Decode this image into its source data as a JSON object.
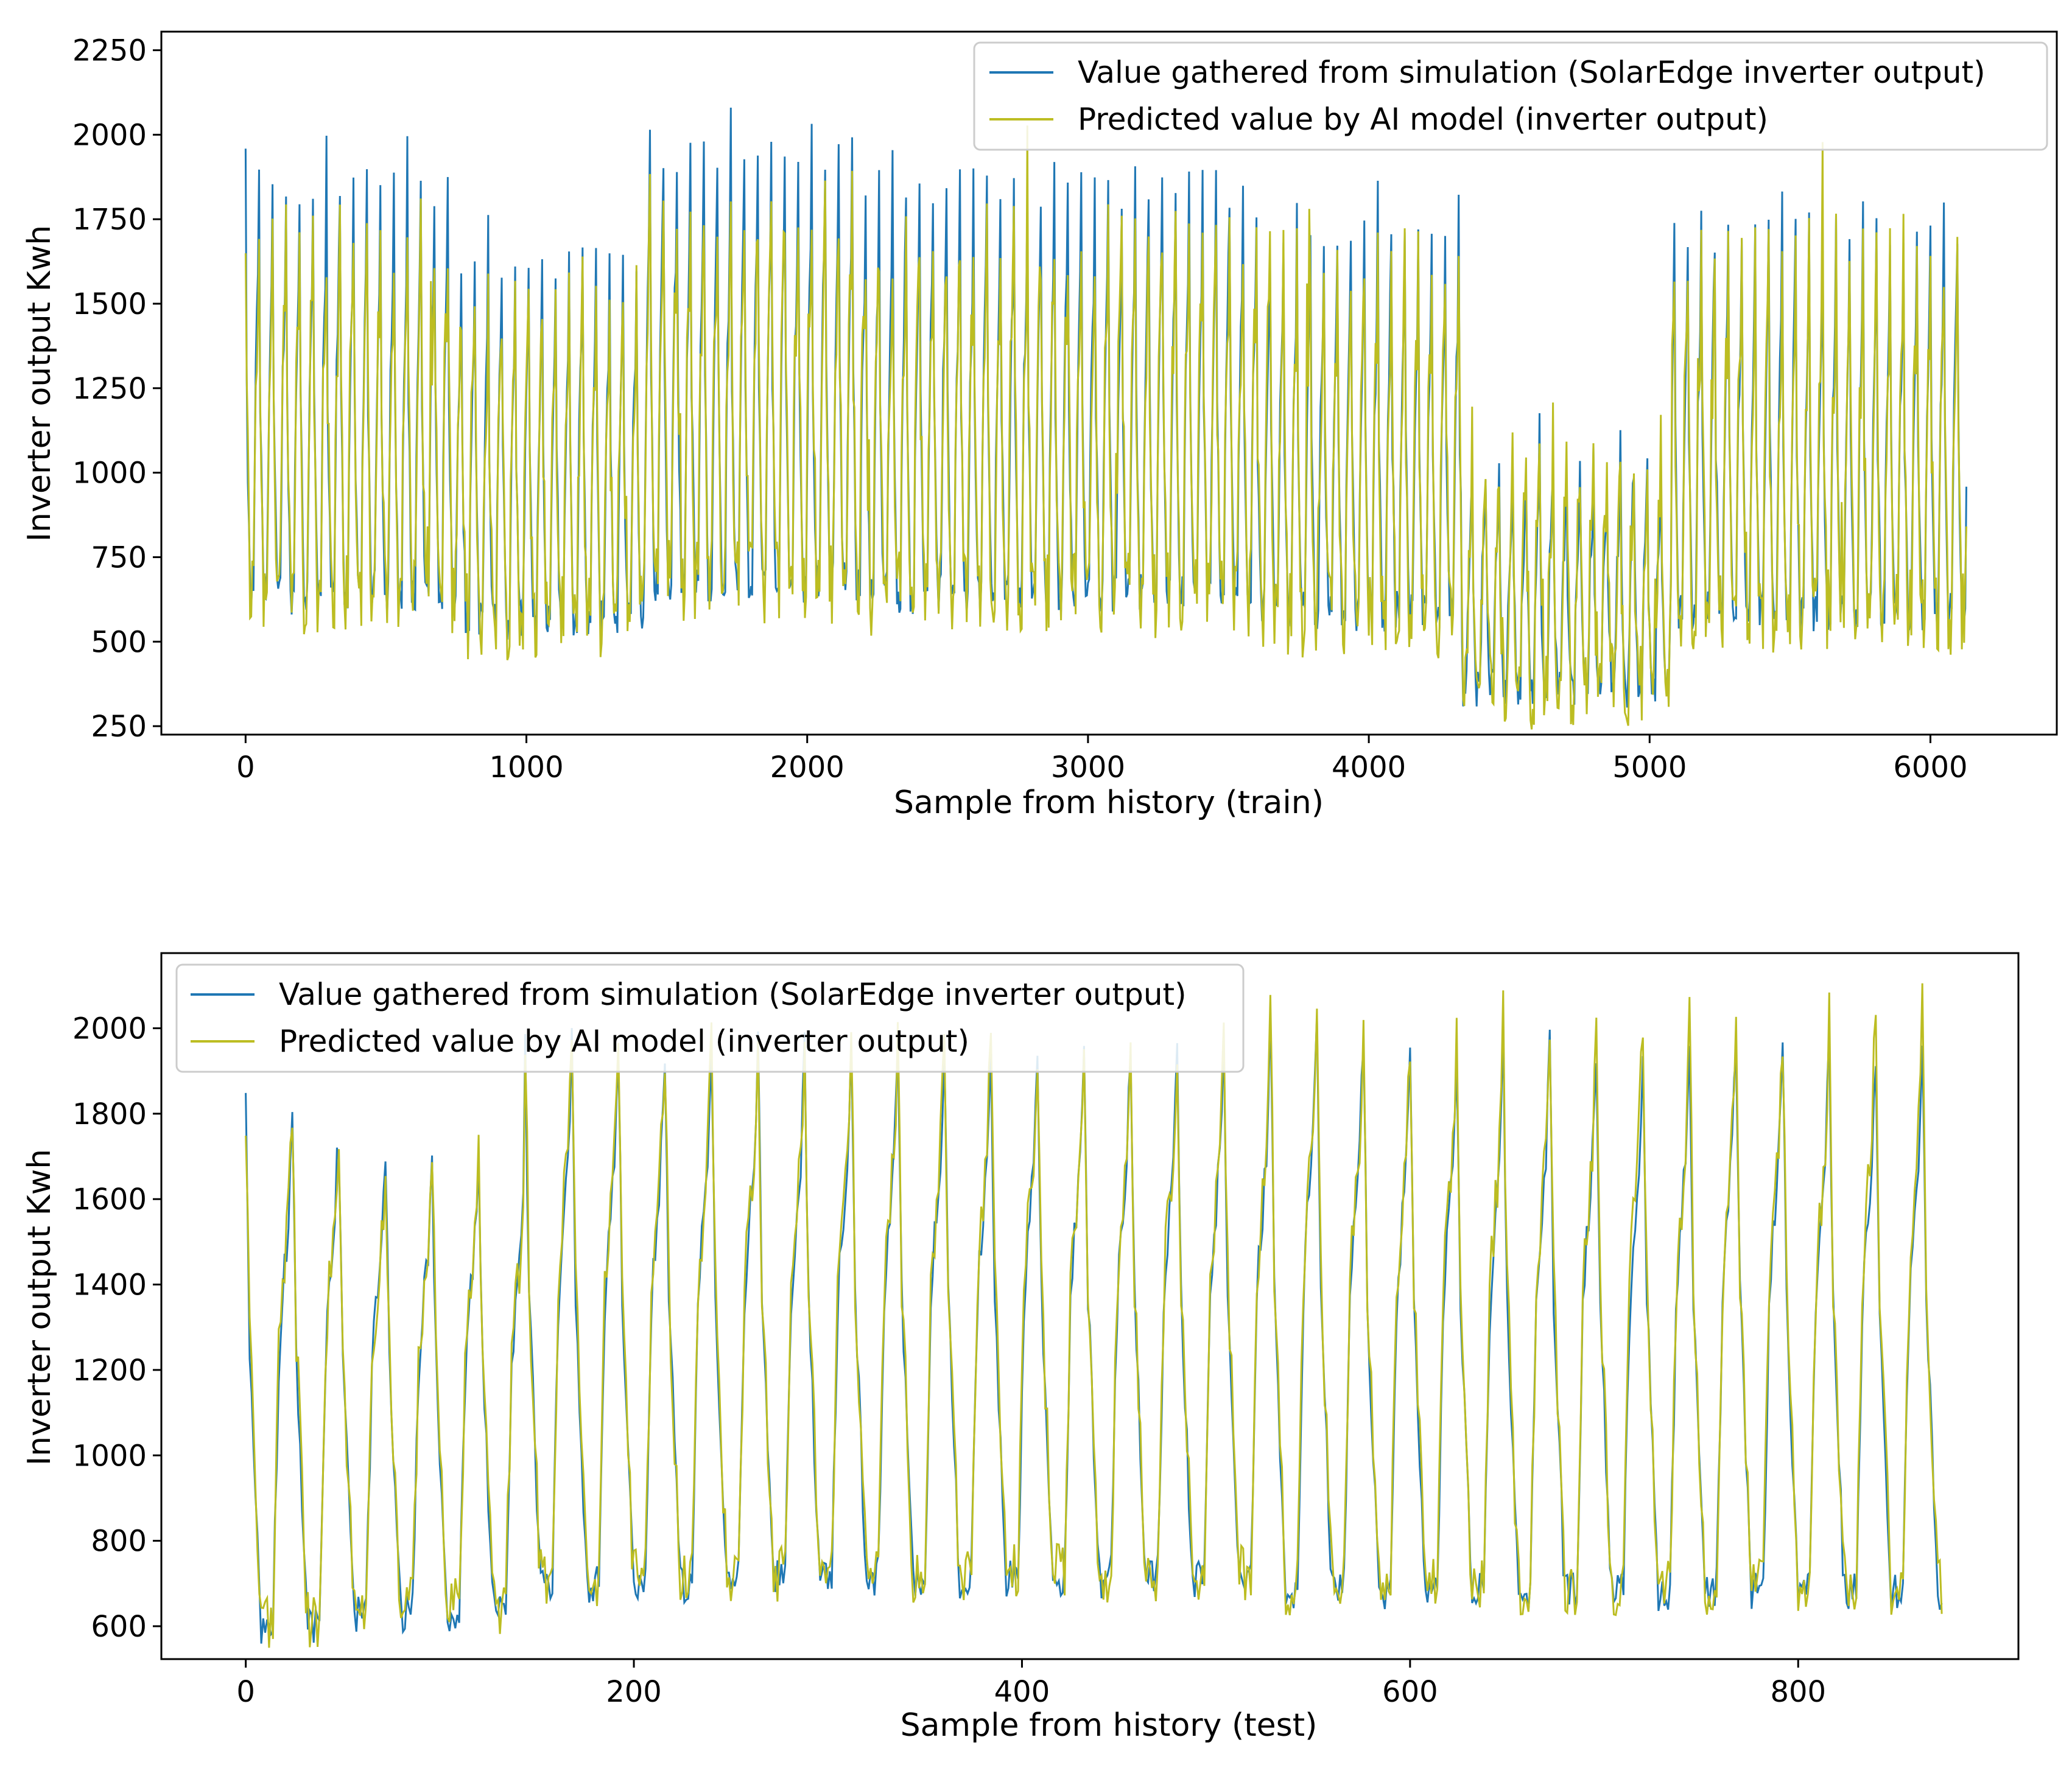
{
  "chart_data": [
    {
      "type": "line",
      "xlabel": "Sample from history (train)",
      "ylabel": "Inverter output Kwh",
      "xlim": [
        -300,
        6450
      ],
      "ylim": [
        225,
        2305
      ],
      "xticks": [
        0,
        1000,
        2000,
        3000,
        4000,
        5000,
        6000
      ],
      "yticks": [
        250,
        500,
        750,
        1000,
        1250,
        1500,
        1750,
        2000,
        2250
      ],
      "xtick_labels": [
        "0",
        "1000",
        "2000",
        "3000",
        "4000",
        "5000",
        "6000"
      ],
      "ytick_labels": [
        "250",
        "500",
        "750",
        "1000",
        "1250",
        "1500",
        "1750",
        "2000",
        "2250"
      ],
      "legend_position": "top-right",
      "cycle_length": 48,
      "x_count": 6130,
      "segments": [
        {
          "start": 0,
          "end": 750,
          "actual_min": 640,
          "actual_peak": 1840,
          "actual_mid": 1220,
          "pred_min": 650,
          "pred_peak": 1700
        },
        {
          "start": 750,
          "end": 1420,
          "actual_min": 565,
          "actual_peak": 1610,
          "actual_mid": 1060,
          "pred_min": 575,
          "pred_peak": 1520
        },
        {
          "start": 1420,
          "end": 2200,
          "actual_min": 675,
          "actual_peak": 1940,
          "actual_mid": 1290,
          "pred_min": 680,
          "pred_peak": 1820
        },
        {
          "start": 2200,
          "end": 3600,
          "actual_min": 640,
          "actual_peak": 1840,
          "actual_mid": 1210,
          "pred_min": 640,
          "pred_peak": 1700
        },
        {
          "start": 3600,
          "end": 4330,
          "actual_min": 590,
          "actual_peak": 1710,
          "actual_mid": 1100,
          "pred_min": 580,
          "pred_peak": 1620
        },
        {
          "start": 4330,
          "end": 5080,
          "actual_min": 360,
          "actual_peak": 1020,
          "actual_mid": 680,
          "pred_min": 370,
          "pred_peak": 1080
        },
        {
          "start": 5080,
          "end": 6130,
          "actual_min": 590,
          "actual_peak": 1710,
          "actual_mid": 1100,
          "pred_min": 590,
          "pred_peak": 1640
        }
      ],
      "series": [
        {
          "name": "Value gathered from simulation (SolarEdge inverter output)",
          "color": "#1f77b4"
        },
        {
          "name": "Predicted value by AI model (inverter output)",
          "color": "#bcbd22"
        }
      ]
    },
    {
      "type": "line",
      "xlabel": "Sample from history (test)",
      "ylabel": "Inverter output Kwh",
      "xlim": [
        -43.5,
        913.5
      ],
      "ylim": [
        523,
        2176
      ],
      "xticks": [
        0,
        200,
        400,
        600,
        800
      ],
      "yticks": [
        600,
        800,
        1000,
        1200,
        1400,
        1600,
        1800,
        2000
      ],
      "xtick_labels": [
        "0",
        "200",
        "400",
        "600",
        "800"
      ],
      "ytick_labels": [
        "600",
        "800",
        "1000",
        "1200",
        "1400",
        "1600",
        "1800",
        "2000"
      ],
      "legend_position": "top-left",
      "cycle_length": 24,
      "x_count": 875,
      "day_peaks": [
        1810,
        1810,
        1720,
        1710,
        1720,
        1720,
        1950,
        1960,
        1950,
        1950,
        1950,
        1950,
        1950,
        1950,
        1950,
        1950,
        1950,
        1950,
        1950,
        1950,
        1960,
        1960,
        2050,
        1990,
        1950,
        1940,
        1940,
        1970,
        1960,
        1940,
        1960,
        1980,
        1980,
        1970,
        1950,
        1950
      ],
      "day_mins": [
        600,
        600,
        630,
        630,
        630,
        630,
        700,
        700,
        700,
        700,
        710,
        710,
        710,
        710,
        710,
        710,
        710,
        710,
        710,
        710,
        710,
        710,
        680,
        680,
        680,
        680,
        680,
        680,
        680,
        680,
        680,
        680,
        680,
        680,
        680,
        680
      ],
      "pred_peaks": [
        1800,
        1800,
        1700,
        1710,
        1700,
        1700,
        2000,
        1990,
        1980,
        1960,
        1980,
        1970,
        1960,
        1970,
        1960,
        1980,
        1950,
        1950,
        1960,
        1960,
        1970,
        1970,
        2070,
        2000,
        1960,
        1960,
        1970,
        2020,
        1990,
        2090,
        2000,
        2050,
        2020,
        2000,
        2080,
        2060
      ],
      "series": [
        {
          "name": "Value gathered from simulation (SolarEdge inverter output)",
          "color": "#1f77b4"
        },
        {
          "name": "Predicted value by AI model (inverter output)",
          "color": "#bcbd22"
        }
      ]
    }
  ]
}
